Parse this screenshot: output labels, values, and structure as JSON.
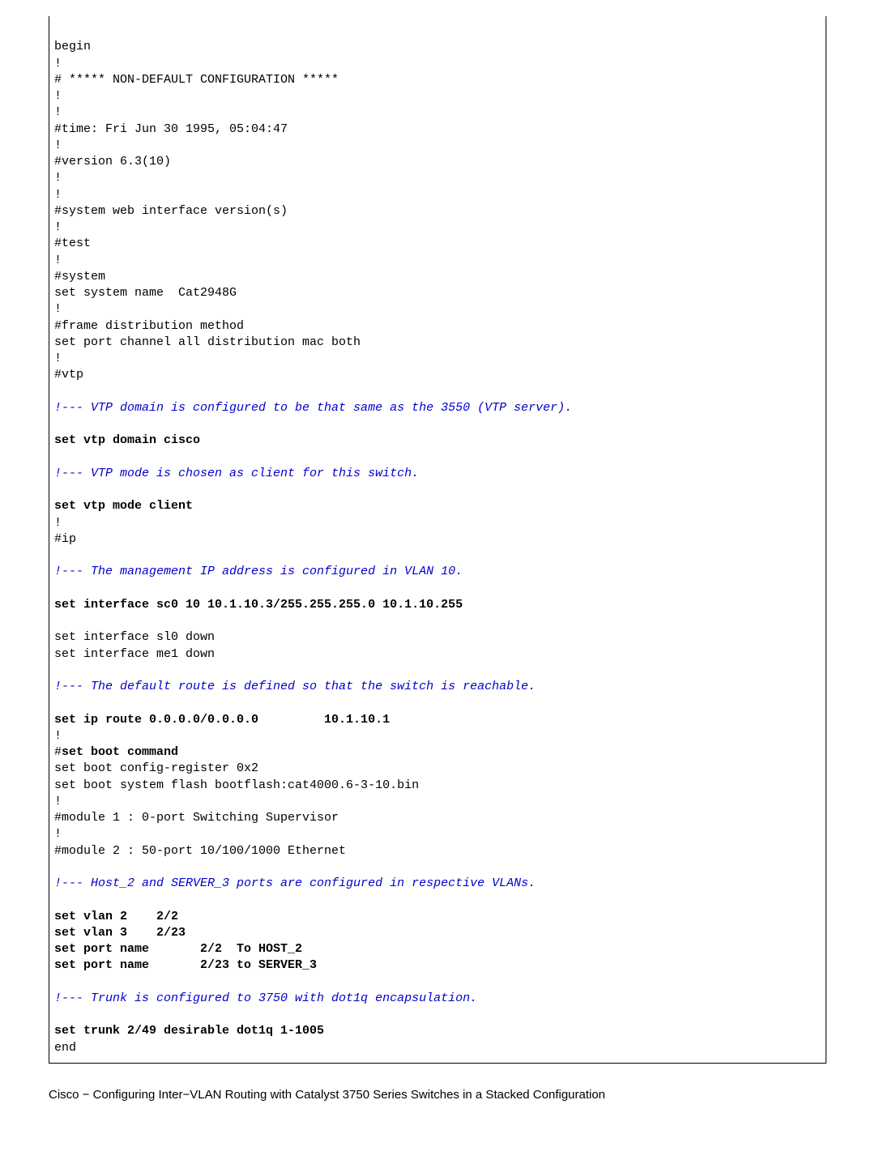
{
  "config": {
    "lines": [
      {
        "t": "",
        "c": "plain"
      },
      {
        "t": "begin",
        "c": "plain"
      },
      {
        "t": "!",
        "c": "plain"
      },
      {
        "t": "# ***** NON-DEFAULT CONFIGURATION *****",
        "c": "plain"
      },
      {
        "t": "!",
        "c": "plain"
      },
      {
        "t": "!",
        "c": "plain"
      },
      {
        "t": "#time: Fri Jun 30 1995, 05:04:47",
        "c": "plain"
      },
      {
        "t": "!",
        "c": "plain"
      },
      {
        "t": "#version 6.3(10)",
        "c": "plain"
      },
      {
        "t": "!",
        "c": "plain"
      },
      {
        "t": "!",
        "c": "plain"
      },
      {
        "t": "#system web interface version(s)",
        "c": "plain"
      },
      {
        "t": "!",
        "c": "plain"
      },
      {
        "t": "#test",
        "c": "plain"
      },
      {
        "t": "!",
        "c": "plain"
      },
      {
        "t": "#system",
        "c": "plain"
      },
      {
        "t": "set system name  Cat2948G",
        "c": "plain"
      },
      {
        "t": "!",
        "c": "plain"
      },
      {
        "t": "#frame distribution method",
        "c": "plain"
      },
      {
        "t": "set port channel all distribution mac both",
        "c": "plain"
      },
      {
        "t": "!",
        "c": "plain"
      },
      {
        "t": "#vtp",
        "c": "plain"
      },
      {
        "t": "",
        "c": "plain"
      },
      {
        "t": "!--- VTP domain is configured to be that same as the 3550 (VTP server).",
        "c": "comment"
      },
      {
        "t": "",
        "c": "plain"
      },
      {
        "t": "set vtp domain cisco",
        "c": "bold"
      },
      {
        "t": "",
        "c": "plain"
      },
      {
        "t": "!--- VTP mode is chosen as client for this switch.",
        "c": "comment"
      },
      {
        "t": "",
        "c": "plain"
      },
      {
        "t": "set vtp mode client",
        "c": "bold"
      },
      {
        "t": "!",
        "c": "plain"
      },
      {
        "t": "#ip",
        "c": "plain"
      },
      {
        "t": "",
        "c": "plain"
      },
      {
        "t": "!--- The management IP address is configured in VLAN 10.",
        "c": "comment"
      },
      {
        "t": "",
        "c": "plain"
      },
      {
        "t": "set interface sc0 10 10.1.10.3/255.255.255.0 10.1.10.255",
        "c": "bold"
      },
      {
        "t": "",
        "c": "plain"
      },
      {
        "t": "set interface sl0 down",
        "c": "plain"
      },
      {
        "t": "set interface me1 down",
        "c": "plain"
      },
      {
        "t": "",
        "c": "plain"
      },
      {
        "t": "!--- The default route is defined so that the switch is reachable.",
        "c": "comment"
      },
      {
        "t": "",
        "c": "plain"
      },
      {
        "t": "set ip route 0.0.0.0/0.0.0.0         10.1.10.1",
        "c": "bold"
      },
      {
        "t": "!",
        "c": "plain"
      },
      {
        "t": "#set boot command",
        "c": "mixed",
        "prefix": "#",
        "bold_part": "set boot command"
      },
      {
        "t": "set boot config-register 0x2",
        "c": "plain"
      },
      {
        "t": "set boot system flash bootflash:cat4000.6-3-10.bin",
        "c": "plain"
      },
      {
        "t": "!",
        "c": "plain"
      },
      {
        "t": "#module 1 : 0-port Switching Supervisor",
        "c": "plain"
      },
      {
        "t": "!",
        "c": "plain"
      },
      {
        "t": "#module 2 : 50-port 10/100/1000 Ethernet",
        "c": "plain"
      },
      {
        "t": "",
        "c": "plain"
      },
      {
        "t": "!--- Host_2 and SERVER_3 ports are configured in respective VLANs.",
        "c": "comment"
      },
      {
        "t": "",
        "c": "plain"
      },
      {
        "t": "set vlan 2    2/2",
        "c": "bold"
      },
      {
        "t": "set vlan 3    2/23",
        "c": "bold"
      },
      {
        "t": "set port name       2/2  To HOST_2",
        "c": "bold"
      },
      {
        "t": "set port name       2/23 to SERVER_3",
        "c": "bold"
      },
      {
        "t": "",
        "c": "plain"
      },
      {
        "t": "!--- Trunk is configured to 3750 with dot1q encapsulation.",
        "c": "comment"
      },
      {
        "t": "",
        "c": "plain"
      },
      {
        "t": "set trunk 2/49 desirable dot1q 1-1005",
        "c": "bold"
      },
      {
        "t": "end",
        "c": "plain"
      }
    ]
  },
  "footer": "Cisco − Configuring Inter−VLAN Routing with Catalyst 3750 Series Switches in a Stacked Configuration",
  "colors": {
    "comment": "#0000cc",
    "text": "#000000",
    "border": "#000000",
    "background": "#ffffff"
  },
  "font": {
    "mono": "Courier New",
    "size_pt": 11
  }
}
